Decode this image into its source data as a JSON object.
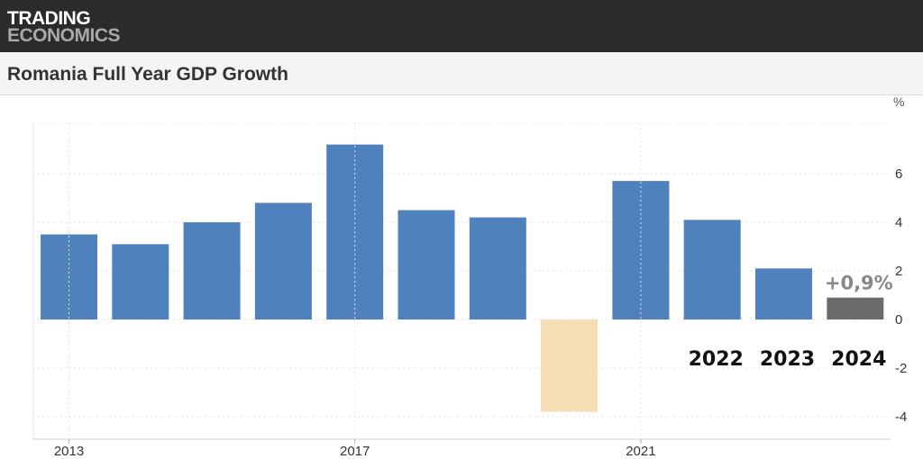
{
  "brand": {
    "line1": "TRADING",
    "line2": "ECONOMICS"
  },
  "title": "Romania Full Year GDP Growth",
  "chart_data": {
    "type": "bar",
    "title": "Romania Full Year GDP Growth",
    "xlabel": "",
    "ylabel": "",
    "unit": "%",
    "categories": [
      "2013",
      "2014",
      "2015",
      "2016",
      "2017",
      "2018",
      "2019",
      "2020",
      "2021",
      "2022",
      "2023",
      "2024"
    ],
    "values": [
      3.5,
      3.1,
      4.0,
      4.8,
      7.2,
      4.5,
      4.2,
      -3.8,
      5.7,
      4.1,
      2.1,
      0.9
    ],
    "bar_colors": [
      "#4f81bd",
      "#4f81bd",
      "#4f81bd",
      "#4f81bd",
      "#4f81bd",
      "#4f81bd",
      "#4f81bd",
      "#f5deb3",
      "#4f81bd",
      "#4f81bd",
      "#4f81bd",
      "#6b6b6b"
    ],
    "ylim": [
      -5,
      8
    ],
    "yticks": [
      -4,
      -2,
      0,
      2,
      4,
      6
    ],
    "xtick_labels": [
      "2013",
      "2017",
      "2021"
    ],
    "grid": true,
    "annotations": {
      "last_value_label": "+0,9%",
      "year_labels": [
        "2022",
        "2023",
        "2024"
      ]
    }
  }
}
